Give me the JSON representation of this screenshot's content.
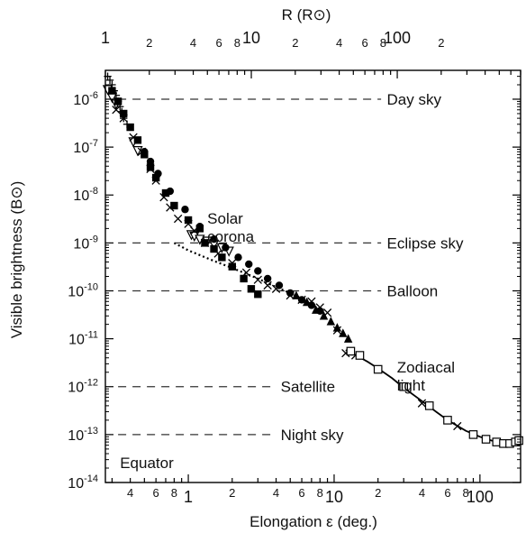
{
  "chart_data": {
    "type": "scatter",
    "xlabel": "Elongation ε (deg.)",
    "ylabel": "Visible brightness (B⊙)",
    "top_axis_label": "R (R⊙)",
    "x_scale": "log",
    "y_scale": "log",
    "xlim": [
      0.27,
      190
    ],
    "ylim": [
      1e-14,
      4e-06
    ],
    "top_xlim": [
      1,
      700
    ],
    "x_ticks": [
      {
        "value": 1,
        "label": "1"
      },
      {
        "value": 10,
        "label": "10"
      },
      {
        "value": 100,
        "label": "100"
      }
    ],
    "x_minor_ticks": [
      {
        "value": 0.4,
        "label": "4"
      },
      {
        "value": 0.6,
        "label": "6"
      },
      {
        "value": 0.8,
        "label": "8"
      },
      {
        "value": 2,
        "label": "2"
      },
      {
        "value": 4,
        "label": "4"
      },
      {
        "value": 6,
        "label": "6"
      },
      {
        "value": 8,
        "label": "8"
      },
      {
        "value": 20,
        "label": "2"
      },
      {
        "value": 40,
        "label": "4"
      },
      {
        "value": 60,
        "label": "6"
      },
      {
        "value": 80,
        "label": "8"
      }
    ],
    "top_ticks": [
      {
        "value": 1,
        "label": "1"
      },
      {
        "value": 10,
        "label": "10"
      },
      {
        "value": 100,
        "label": "100"
      }
    ],
    "top_minor_ticks": [
      {
        "value": 2,
        "label": "2"
      },
      {
        "value": 4,
        "label": "4"
      },
      {
        "value": 6,
        "label": "6"
      },
      {
        "value": 8,
        "label": "8"
      },
      {
        "value": 20,
        "label": "2"
      },
      {
        "value": 40,
        "label": "4"
      },
      {
        "value": 60,
        "label": "6"
      },
      {
        "value": 80,
        "label": "8"
      },
      {
        "value": 200,
        "label": "2"
      }
    ],
    "y_ticks": [
      {
        "exp": -6,
        "label": "10",
        "sup": "-6"
      },
      {
        "exp": -7,
        "label": "10",
        "sup": "-7"
      },
      {
        "exp": -8,
        "label": "10",
        "sup": "-8"
      },
      {
        "exp": -9,
        "label": "10",
        "sup": "-9"
      },
      {
        "exp": -10,
        "label": "10",
        "sup": "-10"
      },
      {
        "exp": -11,
        "label": "10",
        "sup": "-11"
      },
      {
        "exp": -12,
        "label": "10",
        "sup": "-12"
      },
      {
        "exp": -13,
        "label": "10",
        "sup": "-13"
      },
      {
        "exp": -14,
        "label": "10",
        "sup": "-14"
      }
    ],
    "reference_levels": [
      {
        "label": "Day sky",
        "y": 1e-06,
        "x_start": 0.33,
        "x_end": 21,
        "label_x": 23
      },
      {
        "label": "Eclipse sky",
        "y": 1e-09,
        "x_start": 0.33,
        "x_end": 21,
        "label_x": 23
      },
      {
        "label": "Balloon",
        "y": 1e-10,
        "x_start": 0.33,
        "x_end": 21,
        "label_x": 23
      },
      {
        "label": "Satellite",
        "y": 1e-12,
        "x_start": 0.33,
        "x_end": 3.7,
        "label_x": 4.3
      },
      {
        "label": "Night sky",
        "y": 1e-13,
        "x_start": 0.33,
        "x_end": 3.7,
        "label_x": 4.3
      }
    ],
    "region_labels": [
      {
        "lines": [
          "Solar",
          "corona"
        ],
        "x": 1.35,
        "y": 2.5e-09
      },
      {
        "lines": [
          "Zodiacal",
          "light"
        ],
        "x": 27,
        "y": 2e-12
      },
      {
        "lines": [
          "Equator"
        ],
        "x": 0.34,
        "y": 2e-14
      }
    ],
    "model_curve": [
      [
        12,
        5.8e-12
      ],
      [
        14,
        4.6e-12
      ],
      [
        17,
        3.3e-12
      ],
      [
        20,
        2.4e-12
      ],
      [
        25,
        1.5e-12
      ],
      [
        30,
        9.5e-13
      ],
      [
        40,
        5e-13
      ],
      [
        50,
        3e-13
      ],
      [
        60,
        2e-13
      ],
      [
        80,
        1.2e-13
      ],
      [
        100,
        9e-14
      ],
      [
        120,
        7.5e-14
      ],
      [
        140,
        7e-14
      ],
      [
        160,
        7e-14
      ],
      [
        185,
        7.5e-14
      ]
    ],
    "dotted_curve": [
      [
        0.8,
        1e-09
      ],
      [
        1.0,
        7e-10
      ],
      [
        1.5,
        4.2e-10
      ],
      [
        2.0,
        3e-10
      ],
      [
        3.0,
        1.8e-10
      ],
      [
        4.0,
        1.2e-10
      ],
      [
        5.0,
        9e-11
      ],
      [
        6.5,
        6e-11
      ],
      [
        8.0,
        4e-11
      ]
    ],
    "series": [
      {
        "marker": "plus",
        "points": [
          [
            0.28,
            3e-06
          ],
          [
            0.29,
            2.5e-06
          ],
          [
            0.3,
            2e-06
          ],
          [
            0.31,
            1.5e-06
          ],
          [
            0.32,
            1.2e-06
          ],
          [
            0.33,
            9e-07
          ],
          [
            0.34,
            7e-07
          ],
          [
            0.35,
            5.5e-07
          ],
          [
            0.36,
            4e-07
          ],
          [
            0.38,
            3e-07
          ]
        ]
      },
      {
        "marker": "triangle-down",
        "points": [
          [
            0.28,
            1.6e-06
          ],
          [
            0.3,
            1.1e-06
          ],
          [
            0.32,
            8e-07
          ],
          [
            0.42,
            1.3e-07
          ],
          [
            0.45,
            8.5e-08
          ],
          [
            1.05,
            1.5e-09
          ],
          [
            1.1,
            1.4e-09
          ],
          [
            1.2,
            1.2e-09
          ],
          [
            1.35,
            1.1e-09
          ],
          [
            1.5,
            9.5e-10
          ],
          [
            1.7,
            8e-10
          ],
          [
            1.9,
            6.8e-10
          ]
        ]
      },
      {
        "marker": "square-filled",
        "points": [
          [
            0.3,
            1.5e-06
          ],
          [
            0.33,
            9e-07
          ],
          [
            0.36,
            5e-07
          ],
          [
            0.4,
            2.6e-07
          ],
          [
            0.45,
            1.4e-07
          ],
          [
            0.5,
            7e-08
          ],
          [
            0.55,
            3.8e-08
          ],
          [
            0.6,
            2.3e-08
          ],
          [
            0.7,
            1.1e-08
          ],
          [
            0.8,
            6e-09
          ],
          [
            1.0,
            3e-09
          ],
          [
            1.2,
            2e-09
          ],
          [
            1.3,
            1e-09
          ],
          [
            1.5,
            7.5e-10
          ],
          [
            1.7,
            5e-10
          ],
          [
            2.0,
            3.2e-10
          ],
          [
            2.4,
            1.8e-10
          ],
          [
            2.7,
            1.1e-10
          ],
          [
            3.0,
            8.5e-11
          ]
        ]
      },
      {
        "marker": "circle-filled",
        "points": [
          [
            0.5,
            8e-08
          ],
          [
            0.55,
            5e-08
          ],
          [
            0.62,
            2.8e-08
          ],
          [
            0.75,
            1.2e-08
          ],
          [
            0.95,
            5e-09
          ],
          [
            1.2,
            2.2e-09
          ],
          [
            1.5,
            1.2e-09
          ],
          [
            1.8,
            8e-10
          ],
          [
            2.2,
            5e-10
          ],
          [
            2.6,
            3.6e-10
          ],
          [
            3.0,
            2.6e-10
          ],
          [
            3.5,
            1.8e-10
          ],
          [
            4.2,
            1.3e-10
          ],
          [
            5.0,
            9e-11
          ],
          [
            6.0,
            6.5e-11
          ],
          [
            7.0,
            5e-11
          ],
          [
            8.0,
            3.8e-11
          ]
        ]
      },
      {
        "marker": "x",
        "points": [
          [
            0.32,
            6e-07
          ],
          [
            0.36,
            4e-07
          ],
          [
            0.42,
            1.6e-07
          ],
          [
            0.48,
            8e-08
          ],
          [
            0.55,
            3.5e-08
          ],
          [
            0.6,
            2e-08
          ],
          [
            0.68,
            9e-09
          ],
          [
            0.75,
            5.5e-09
          ],
          [
            0.85,
            3.2e-09
          ],
          [
            1.0,
            2.5e-09
          ],
          [
            1.1,
            1.8e-09
          ],
          [
            1.3,
            1e-09
          ],
          [
            1.6,
            6e-10
          ],
          [
            2.0,
            3.8e-10
          ],
          [
            2.5,
            2.4e-10
          ],
          [
            3.0,
            1.7e-10
          ],
          [
            3.5,
            1.3e-10
          ],
          [
            4.0,
            1.1e-10
          ],
          [
            5.0,
            8e-11
          ],
          [
            6.0,
            6.5e-11
          ],
          [
            7.0,
            6e-11
          ],
          [
            8.0,
            4.5e-11
          ],
          [
            9.0,
            3.5e-11
          ],
          [
            10.5,
            1.5e-11
          ],
          [
            12,
            5e-12
          ],
          [
            14,
            4.5e-12
          ],
          [
            40,
            4.5e-13
          ],
          [
            70,
            1.5e-13
          ]
        ]
      },
      {
        "marker": "triangle-filled",
        "points": [
          [
            5.5,
            8e-11
          ],
          [
            6.5,
            5.8e-11
          ],
          [
            7.5,
            4e-11
          ],
          [
            8.5,
            3e-11
          ],
          [
            9.5,
            2.3e-11
          ],
          [
            10.5,
            1.7e-11
          ],
          [
            11.5,
            1.3e-11
          ],
          [
            12.5,
            1e-11
          ]
        ]
      },
      {
        "marker": "square-open",
        "points": [
          [
            13,
            5.5e-12
          ],
          [
            15,
            4.5e-12
          ],
          [
            20,
            2.3e-12
          ],
          [
            30,
            1e-12
          ],
          [
            45,
            4e-13
          ],
          [
            60,
            2e-13
          ],
          [
            90,
            1e-13
          ],
          [
            110,
            8e-14
          ],
          [
            130,
            7e-14
          ],
          [
            145,
            6.5e-14
          ],
          [
            160,
            6.5e-14
          ],
          [
            175,
            7e-14
          ],
          [
            185,
            7.5e-14
          ]
        ]
      }
    ]
  }
}
